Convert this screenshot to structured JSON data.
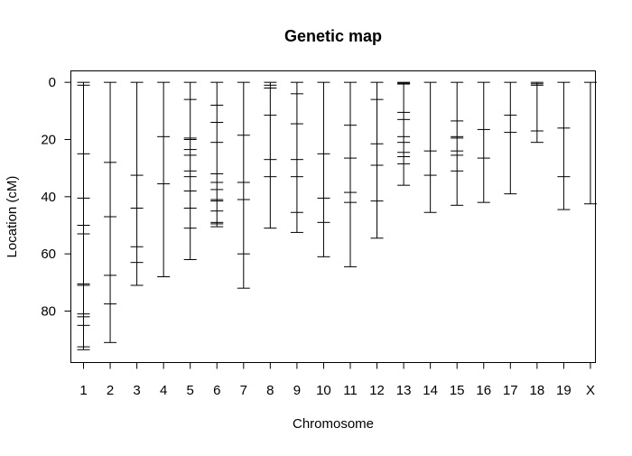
{
  "chart_data": {
    "type": "genetic-map",
    "title": "Genetic map",
    "xlabel": "Chromosome",
    "ylabel": "Location (cM)",
    "ylim": [
      98,
      -4
    ],
    "y_ticks": [
      0,
      20,
      40,
      60,
      80
    ],
    "grid": false,
    "chromosomes": [
      {
        "name": "1",
        "length": 93.5,
        "markers": [
          0,
          1,
          25,
          40.5,
          50,
          53,
          70.5,
          71,
          81,
          82,
          85,
          92.5,
          93.5
        ]
      },
      {
        "name": "2",
        "length": 91,
        "markers": [
          0,
          28,
          47,
          67.5,
          77.5,
          91
        ]
      },
      {
        "name": "3",
        "length": 71,
        "markers": [
          0,
          32.5,
          44,
          57.5,
          63,
          71
        ]
      },
      {
        "name": "4",
        "length": 68,
        "markers": [
          0,
          19,
          35.5,
          68
        ]
      },
      {
        "name": "5",
        "length": 62,
        "markers": [
          0,
          6,
          19.5,
          20,
          23.5,
          25.5,
          31,
          33,
          38,
          44,
          51,
          62
        ]
      },
      {
        "name": "6",
        "length": 50.5,
        "markers": [
          0,
          8,
          14,
          21,
          32,
          35,
          37.5,
          41,
          41.5,
          45,
          49,
          49.5,
          50.5
        ]
      },
      {
        "name": "7",
        "length": 72,
        "markers": [
          0,
          18.5,
          35,
          41,
          60,
          72
        ]
      },
      {
        "name": "8",
        "length": 51,
        "markers": [
          0,
          1,
          2,
          11.5,
          27,
          33,
          51
        ]
      },
      {
        "name": "9",
        "length": 52.5,
        "markers": [
          0,
          4,
          14.5,
          27,
          33,
          45.5,
          52.5
        ]
      },
      {
        "name": "10",
        "length": 61,
        "markers": [
          0,
          25,
          40.5,
          49,
          61
        ]
      },
      {
        "name": "11",
        "length": 64.5,
        "markers": [
          0,
          15,
          26.5,
          38.5,
          42,
          64.5
        ]
      },
      {
        "name": "12",
        "length": 54.5,
        "markers": [
          0,
          6,
          21.5,
          29,
          41.5,
          54.5
        ]
      },
      {
        "name": "13",
        "length": 36,
        "markers": [
          0,
          0.3,
          0.6,
          10.5,
          13,
          19,
          21,
          24.5,
          26,
          28.5,
          36
        ]
      },
      {
        "name": "14",
        "length": 45.5,
        "markers": [
          0,
          24,
          32.5,
          45.5
        ]
      },
      {
        "name": "15",
        "length": 43,
        "markers": [
          0,
          13.5,
          19,
          19.5,
          24,
          25.5,
          31,
          43
        ]
      },
      {
        "name": "16",
        "length": 42,
        "markers": [
          0,
          16.5,
          26.5,
          42
        ]
      },
      {
        "name": "17",
        "length": 39,
        "markers": [
          0,
          11.5,
          17.5,
          39
        ]
      },
      {
        "name": "18",
        "length": 21,
        "markers": [
          0,
          0.5,
          1,
          17,
          21
        ]
      },
      {
        "name": "19",
        "length": 44.5,
        "markers": [
          0,
          16,
          33,
          44.5
        ]
      },
      {
        "name": "X",
        "length": 42.5,
        "markers": [
          0,
          42.5
        ]
      }
    ]
  }
}
